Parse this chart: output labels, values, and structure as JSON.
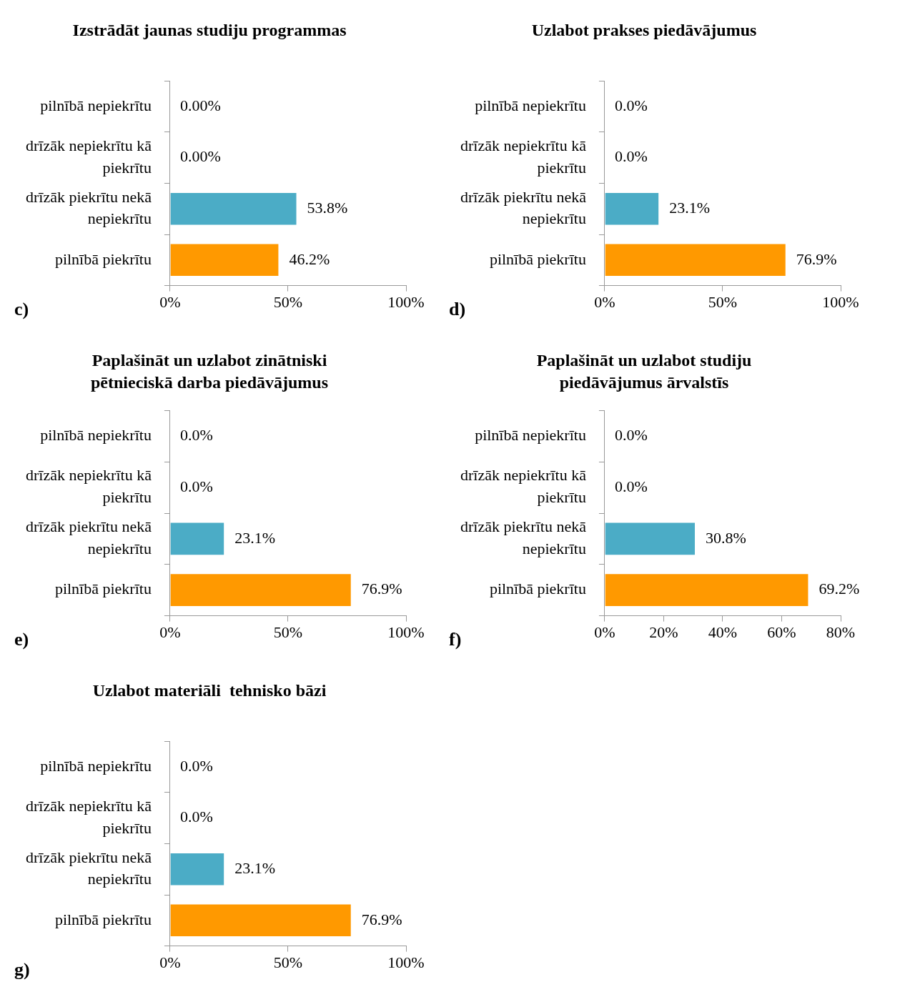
{
  "chart_data": [
    {
      "type": "bar",
      "orientation": "horizontal",
      "title": "Izstrādāt jaunas studiju programmas",
      "categories": [
        "pilnībā nepiekrītu",
        "drīzāk nepiekrītu kā piekrītu",
        "drīzāk piekrītu nekā nepiekrītu",
        "pilnībā piekrītu"
      ],
      "values": [
        0,
        0,
        53.8,
        46.2
      ],
      "colors": [
        "#4bacc6",
        "#4bacc6",
        "#4bacc6",
        "#ff9900"
      ],
      "value_labels": [
        "0.00%",
        "0.00%",
        "53.8%",
        "46.2%"
      ],
      "xlim": [
        0,
        100
      ],
      "xticks": [
        {
          "value": 0,
          "label": "0%"
        },
        {
          "value": 50,
          "label": "50%"
        },
        {
          "value": 100,
          "label": "100%"
        }
      ],
      "grid": false,
      "annotations": [
        "c)"
      ]
    },
    {
      "type": "bar",
      "orientation": "horizontal",
      "title": "Uzlabot prakses piedāvājumus",
      "categories": [
        "pilnībā nepiekrītu",
        "drīzāk nepiekrītu kā piekrītu",
        "drīzāk piekrītu nekā nepiekrītu",
        "pilnībā piekrītu"
      ],
      "values": [
        0,
        0,
        23.1,
        76.9
      ],
      "colors": [
        "#4bacc6",
        "#4bacc6",
        "#4bacc6",
        "#ff9900"
      ],
      "value_labels": [
        "0.0%",
        "0.0%",
        "23.1%",
        "76.9%"
      ],
      "xlim": [
        0,
        100
      ],
      "xticks": [
        {
          "value": 0,
          "label": "0%"
        },
        {
          "value": 50,
          "label": "50%"
        },
        {
          "value": 100,
          "label": "100%"
        }
      ],
      "grid": false,
      "annotations": [
        "d)"
      ]
    },
    {
      "type": "bar",
      "orientation": "horizontal",
      "title": "Paplašināt un uzlabot zinātniski pētnieciskā darba piedāvājumus",
      "categories": [
        "pilnībā nepiekrītu",
        "drīzāk nepiekrītu kā piekrītu",
        "drīzāk piekrītu nekā nepiekrītu",
        "pilnībā piekrītu"
      ],
      "values": [
        0,
        0,
        23.1,
        76.9
      ],
      "colors": [
        "#4bacc6",
        "#4bacc6",
        "#4bacc6",
        "#ff9900"
      ],
      "value_labels": [
        "0.0%",
        "0.0%",
        "23.1%",
        "76.9%"
      ],
      "xlim": [
        0,
        100
      ],
      "xticks": [
        {
          "value": 0,
          "label": "0%"
        },
        {
          "value": 50,
          "label": "50%"
        },
        {
          "value": 100,
          "label": "100%"
        }
      ],
      "grid": false,
      "annotations": [
        "e)"
      ]
    },
    {
      "type": "bar",
      "orientation": "horizontal",
      "title": "Paplašināt un uzlabot studiju piedāvājumus ārvalstīs",
      "categories": [
        "pilnībā nepiekrītu",
        "drīzāk nepiekrītu kā piekrītu",
        "drīzāk piekrītu nekā nepiekrītu",
        "pilnībā piekrītu"
      ],
      "values": [
        0,
        0,
        30.8,
        69.2
      ],
      "colors": [
        "#4bacc6",
        "#4bacc6",
        "#4bacc6",
        "#ff9900"
      ],
      "value_labels": [
        "0.0%",
        "0.0%",
        "30.8%",
        "69.2%"
      ],
      "xlim": [
        0,
        80
      ],
      "xticks": [
        {
          "value": 0,
          "label": "0%"
        },
        {
          "value": 20,
          "label": "20%"
        },
        {
          "value": 40,
          "label": "40%"
        },
        {
          "value": 60,
          "label": "60%"
        },
        {
          "value": 80,
          "label": "80%"
        }
      ],
      "grid": false,
      "annotations": [
        "f)"
      ]
    },
    {
      "type": "bar",
      "orientation": "horizontal",
      "title": "Uzlabot materiāli  tehnisko bāzi",
      "categories": [
        "pilnībā nepiekrītu",
        "drīzāk nepiekrītu kā piekrītu",
        "drīzāk piekrītu nekā nepiekrītu",
        "pilnībā piekrītu"
      ],
      "values": [
        0,
        0,
        23.1,
        76.9
      ],
      "colors": [
        "#4bacc6",
        "#4bacc6",
        "#4bacc6",
        "#ff9900"
      ],
      "value_labels": [
        "0.0%",
        "0.0%",
        "23.1%",
        "76.9%"
      ],
      "xlim": [
        0,
        100
      ],
      "xticks": [
        {
          "value": 0,
          "label": "0%"
        },
        {
          "value": 50,
          "label": "50%"
        },
        {
          "value": 100,
          "label": "100%"
        }
      ],
      "grid": false,
      "annotations": [
        "g)"
      ]
    }
  ]
}
